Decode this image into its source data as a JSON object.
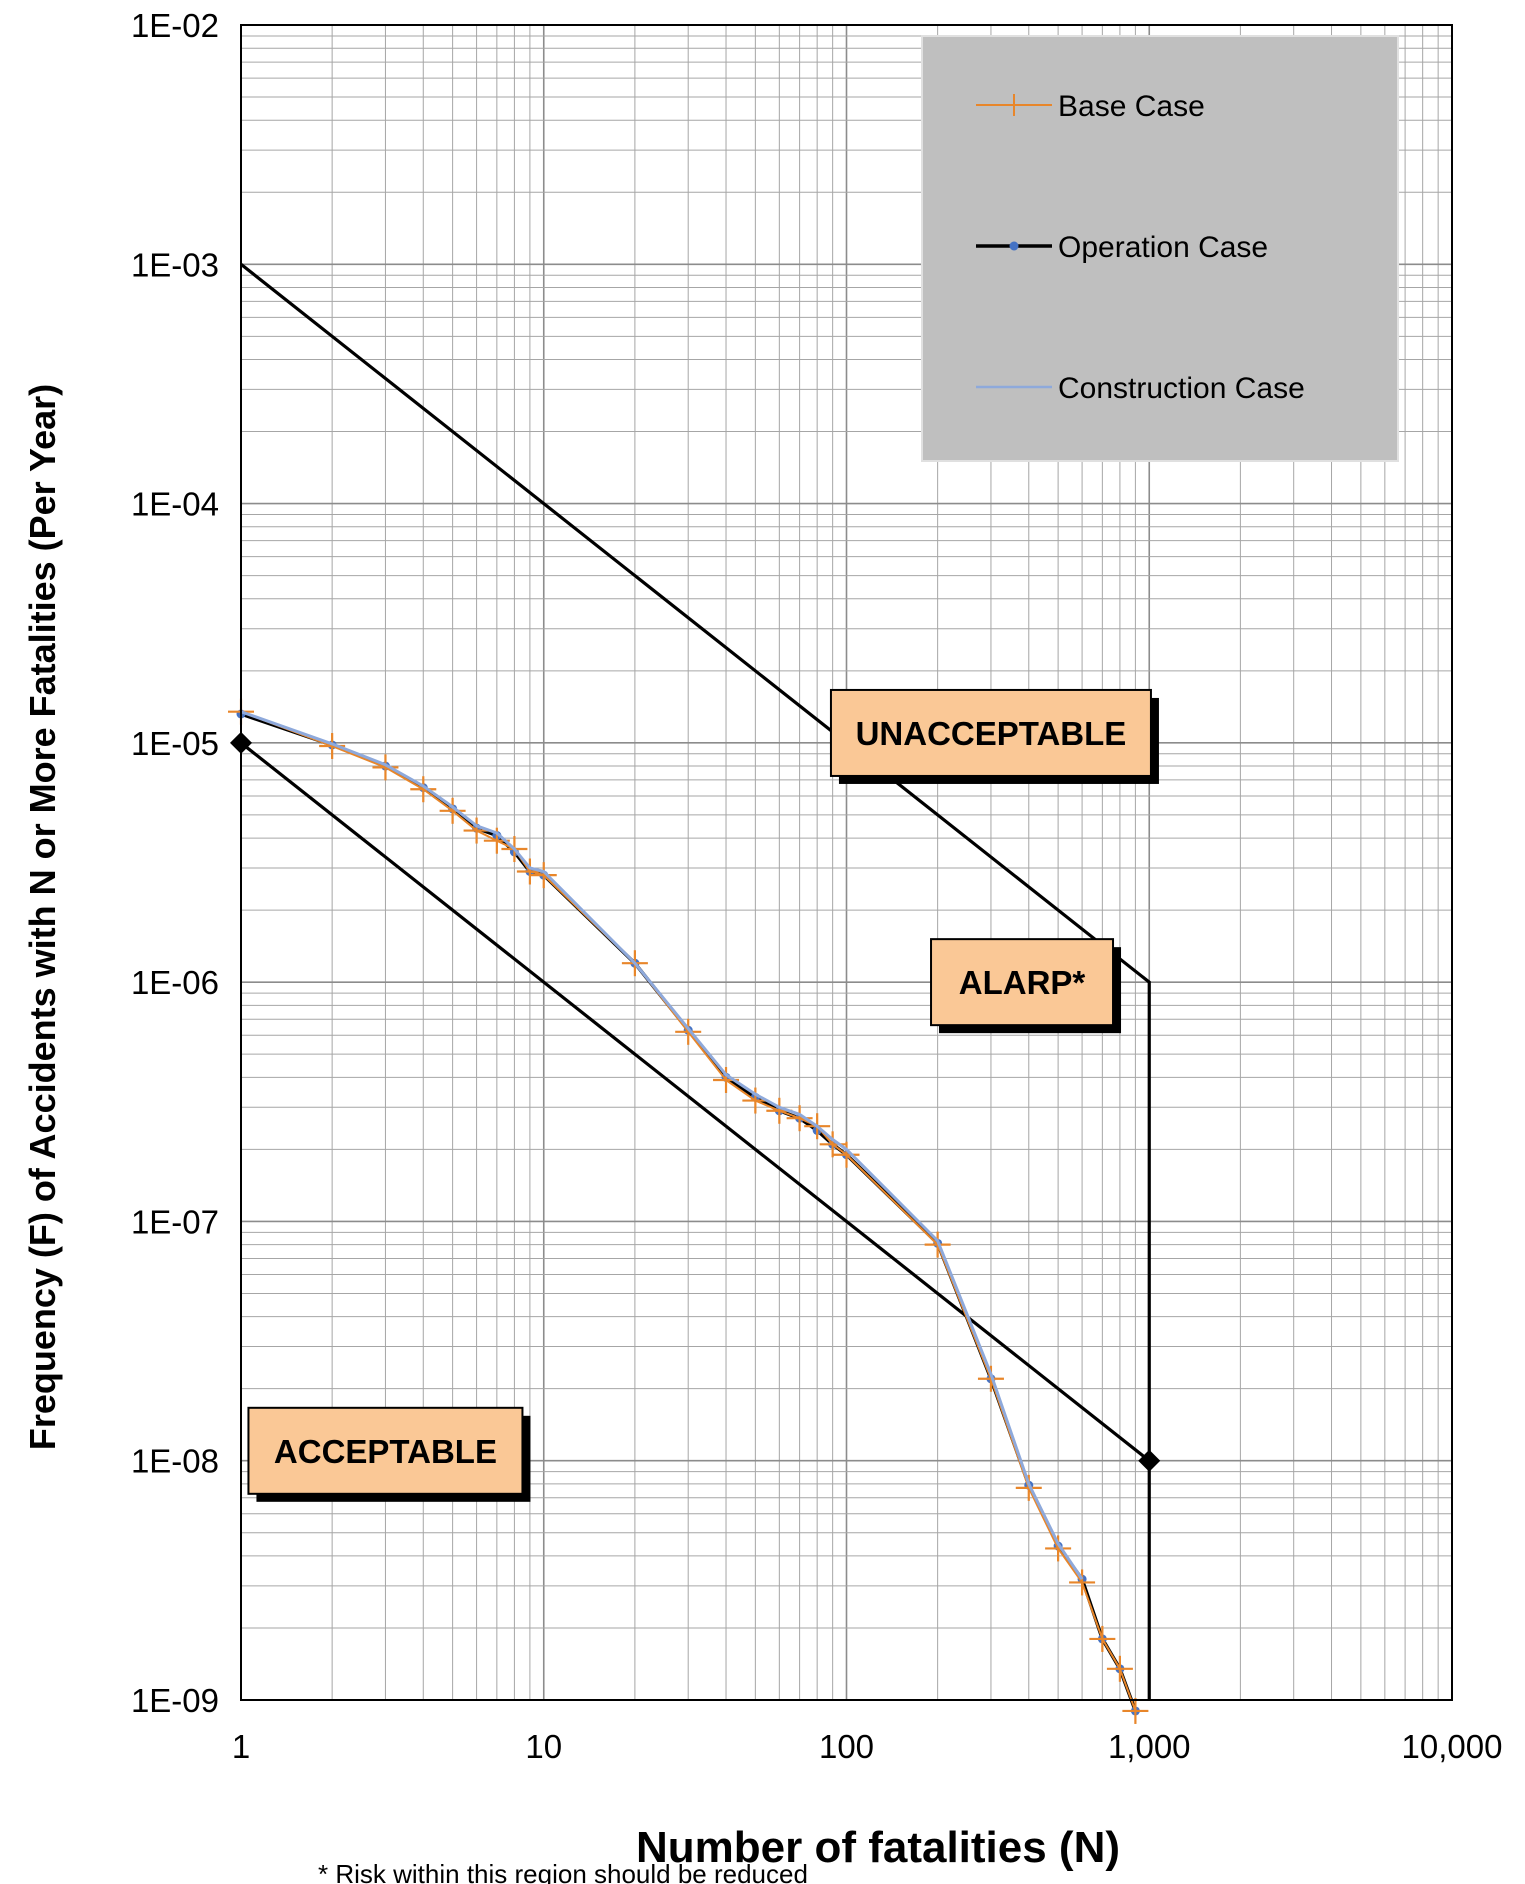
{
  "chart_data": {
    "type": "line",
    "xlabel": "Number of fatalities (N)",
    "ylabel": "Frequency (F) of Accidents with N or More Fatalities (Per Year)",
    "footnote": "* Risk within this region should be reduced",
    "x_scale": "log",
    "y_scale": "log",
    "xlim": [
      1,
      10000
    ],
    "ylim": [
      1e-09,
      0.01
    ],
    "grid": true,
    "legend_position": "top-right",
    "x_ticks": [
      {
        "value": 1,
        "label": "1"
      },
      {
        "value": 10,
        "label": "10"
      },
      {
        "value": 100,
        "label": "100"
      },
      {
        "value": 1000,
        "label": "1,000"
      },
      {
        "value": 10000,
        "label": "10,000"
      }
    ],
    "y_ticks": [
      {
        "value": 0.01,
        "label": "1E-02"
      },
      {
        "value": 0.001,
        "label": "1E-03"
      },
      {
        "value": 0.0001,
        "label": "1E-04"
      },
      {
        "value": 1e-05,
        "label": "1E-05"
      },
      {
        "value": 1e-06,
        "label": "1E-06"
      },
      {
        "value": 1e-07,
        "label": "1E-07"
      },
      {
        "value": 1e-08,
        "label": "1E-08"
      },
      {
        "value": 1e-09,
        "label": "1E-09"
      }
    ],
    "criteria_lines": [
      {
        "key": "upper",
        "points": [
          [
            1,
            0.001
          ],
          [
            1000,
            1e-06
          ],
          [
            1000,
            1e-09
          ]
        ],
        "color": "#000000"
      },
      {
        "key": "lower",
        "points": [
          [
            1,
            1e-05
          ],
          [
            1000,
            1e-08
          ]
        ],
        "color": "#000000",
        "endpoint_markers": true
      }
    ],
    "regions": [
      {
        "label": "UNACCEPTABLE",
        "x": 300,
        "y": 1.1e-05
      },
      {
        "label": "ALARP*",
        "x": 380,
        "y": 1e-06
      },
      {
        "label": "ACCEPTABLE",
        "x": 3,
        "y": 1.1e-08
      }
    ],
    "region_fill": "#FAC896",
    "series": [
      {
        "name": "Base Case",
        "color": "#E8862A",
        "marker": "plus",
        "x": [
          1,
          2,
          3,
          4,
          5,
          6,
          7,
          8,
          9,
          10,
          20,
          30,
          40,
          50,
          60,
          70,
          80,
          90,
          100,
          200,
          300,
          400,
          500,
          600,
          700,
          800,
          900
        ],
        "y": [
          1.35e-05,
          9.7e-06,
          7.9e-06,
          6.4e-06,
          5.2e-06,
          4.3e-06,
          3.9e-06,
          3.6e-06,
          2.9e-06,
          2.8e-06,
          1.2e-06,
          6.2e-07,
          3.9e-07,
          3.2e-07,
          2.9e-07,
          2.7e-07,
          2.5e-07,
          2.1e-07,
          1.9e-07,
          8e-08,
          2.2e-08,
          7.7e-09,
          4.3e-09,
          3.1e-09,
          1.8e-09,
          1.35e-09,
          9e-10
        ]
      },
      {
        "name": "Operation Case",
        "color": "#000000",
        "marker": "dot",
        "marker_color": "#4472C4",
        "x": [
          1,
          2,
          3,
          4,
          5,
          6,
          7,
          8,
          9,
          10,
          20,
          30,
          40,
          50,
          60,
          70,
          80,
          90,
          100,
          200,
          300,
          400,
          500,
          600,
          700,
          800,
          900
        ],
        "y": [
          1.32e-05,
          9.8e-06,
          8e-06,
          6.5e-06,
          5.3e-06,
          4.4e-06,
          4.1e-06,
          3.5e-06,
          2.9e-06,
          2.8e-06,
          1.2e-06,
          6.3e-07,
          4e-07,
          3.3e-07,
          2.9e-07,
          2.7e-07,
          2.4e-07,
          2.1e-07,
          1.9e-07,
          8.1e-08,
          2.2e-08,
          7.9e-09,
          4.4e-09,
          3.2e-09,
          1.8e-09,
          1.35e-09,
          9e-10
        ]
      },
      {
        "name": "Construction Case",
        "color": "#8EA9DB",
        "marker": "none",
        "x": [
          1,
          2,
          3,
          4,
          5,
          6,
          7,
          8,
          9,
          10,
          20,
          30,
          40,
          50,
          60,
          70,
          80,
          90,
          100,
          200,
          300,
          400,
          500,
          600
        ],
        "y": [
          1.35e-05,
          9.9e-06,
          8.1e-06,
          6.6e-06,
          5.4e-06,
          4.5e-06,
          4.2e-06,
          3.6e-06,
          3e-06,
          2.9e-06,
          1.2e-06,
          6.4e-07,
          4.1e-07,
          3.4e-07,
          3e-07,
          2.8e-07,
          2.5e-07,
          2.2e-07,
          2e-07,
          8.3e-08,
          2.3e-08,
          8e-09,
          4.5e-09,
          3.2e-09
        ]
      }
    ],
    "colors": {
      "legend_background": "#BFBFBF",
      "grid": "#A6A6A6",
      "plot_border": "#000000"
    }
  }
}
